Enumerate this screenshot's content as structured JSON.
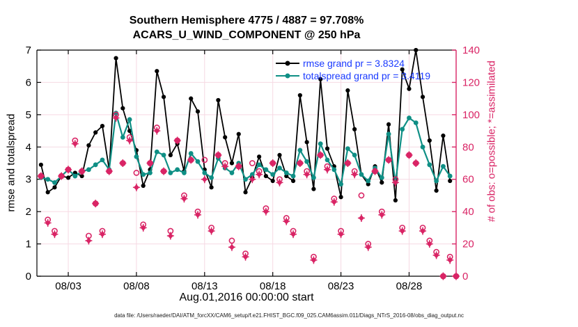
{
  "figure": {
    "title_line1": "Southern Hemisphere 4775 / 4887 = 97.708%",
    "title_line2": "ACARS_U_WIND_COMPONENT @ 250 hPa",
    "xlabel": "Aug.01,2016 00:00:00 start",
    "footer": "data file: /Users/raeder/DAI/ATM_forcXX/CAM6_setup/f.e21.FHIST_BGC.f09_025.CAM6assim.011/Diags_NTrS_2016-08/obs_diag_output.nc",
    "legend": [
      {
        "label": "rmse grand pr = 3.8324",
        "color": "#000000"
      },
      {
        "label": "totalspread grand pr = 3.4119",
        "color": "#0f8f85"
      }
    ],
    "colors": {
      "legend_text": "#1a3aff",
      "obs_magenta": "#d92465",
      "teal": "#0f8f85",
      "black": "#000000",
      "grid_pink": "#f6d9e3"
    }
  },
  "chart_data": {
    "type": "line",
    "title": "Southern Hemisphere 4775 / 4887 = 97.708%  /  ACARS_U_WIND_COMPONENT @ 250 hPa",
    "x_axis": {
      "label": "Aug.01,2016 00:00:00 start",
      "min": 0.7,
      "max": 31.45,
      "tick_days": [
        3,
        8,
        13,
        18,
        23,
        28
      ],
      "tick_labels": [
        "08/03",
        "08/08",
        "08/13",
        "08/18",
        "08/23",
        "08/28"
      ]
    },
    "left_axis": {
      "label": "rmse and totalspread",
      "min": 0,
      "max": 7,
      "ticks": [
        0,
        1,
        2,
        3,
        4,
        5,
        6,
        7
      ]
    },
    "right_axis": {
      "label": "# of obs: o=possible; *=assimilated",
      "min": 0,
      "max": 140,
      "ticks": [
        0,
        20,
        40,
        60,
        80,
        100,
        120,
        140
      ]
    },
    "grid": true,
    "legend_position": "top-right-inside",
    "x_days": [
      1,
      1.5,
      2,
      2.5,
      3,
      3.5,
      4,
      4.5,
      5,
      5.5,
      6,
      6.5,
      7,
      7.5,
      8,
      8.5,
      9,
      9.5,
      10,
      10.5,
      11,
      11.5,
      12,
      12.5,
      13,
      13.5,
      14,
      14.5,
      15,
      15.5,
      16,
      16.5,
      17,
      17.5,
      18,
      18.5,
      19,
      19.5,
      20,
      20.5,
      21,
      21.5,
      22,
      22.5,
      23,
      23.5,
      24,
      24.5,
      25,
      25.5,
      26,
      26.5,
      27,
      27.5,
      28,
      28.5,
      29,
      29.5,
      30,
      30.5,
      31,
      31.45
    ],
    "series": [
      {
        "name": "rmse",
        "axis": "left",
        "marker": "filled-circle",
        "color": "#000000",
        "grand_mean": 3.8324,
        "values": [
          3.45,
          2.6,
          2.75,
          3.1,
          3.05,
          3.2,
          3.1,
          4.05,
          4.45,
          4.65,
          3.3,
          6.75,
          5.2,
          4.5,
          3.9,
          2.8,
          3.3,
          6.35,
          5.55,
          3.75,
          4.1,
          3.25,
          5.5,
          5.1,
          3.3,
          2.75,
          5.45,
          4.3,
          3.5,
          4.4,
          2.6,
          3.05,
          3.7,
          3.1,
          2.95,
          3.75,
          3.1,
          2.95,
          5.6,
          4.15,
          2.7,
          6.1,
          3.95,
          3.4,
          2.45,
          5.75,
          4.55,
          3.15,
          2.85,
          3.4,
          2.9,
          4.7,
          2.35,
          6.4,
          5.8,
          7.0,
          5.55,
          4.2,
          2.65,
          4.35,
          2.95,
          null
        ]
      },
      {
        "name": "totalspread",
        "axis": "left",
        "marker": "filled-circle",
        "color": "#0f8f85",
        "grand_mean": 3.4119,
        "values": [
          3.05,
          3.0,
          2.9,
          3.1,
          3.3,
          3.1,
          3.25,
          3.3,
          3.45,
          3.6,
          3.3,
          5.05,
          4.3,
          4.85,
          3.7,
          3.15,
          3.2,
          3.85,
          3.75,
          3.2,
          3.3,
          3.2,
          3.8,
          3.55,
          3.2,
          3.05,
          3.65,
          3.35,
          3.2,
          3.5,
          3.0,
          3.15,
          3.45,
          3.3,
          3.15,
          3.35,
          3.2,
          3.1,
          3.9,
          3.55,
          3.05,
          4.1,
          3.6,
          3.3,
          2.85,
          3.95,
          3.75,
          3.15,
          2.95,
          3.35,
          3.05,
          4.4,
          2.9,
          4.55,
          4.9,
          4.75,
          4.0,
          3.45,
          2.95,
          3.4,
          3.1,
          null
        ]
      },
      {
        "name": "possible",
        "axis": "right",
        "marker": "open-circle",
        "color": "#d92465",
        "values": [
          62,
          35,
          28,
          62,
          66,
          84,
          65,
          25,
          45,
          28,
          65,
          100,
          70,
          86,
          64,
          32,
          70,
          92,
          65,
          28,
          84,
          50,
          72,
          40,
          72,
          30,
          75,
          70,
          22,
          68,
          14,
          70,
          65,
          42,
          70,
          60,
          36,
          28,
          70,
          65,
          12,
          75,
          68,
          48,
          28,
          70,
          65,
          50,
          20,
          65,
          40,
          72,
          60,
          30,
          75,
          70,
          30,
          22,
          15,
          0,
          12,
          0
        ]
      },
      {
        "name": "assimilated",
        "axis": "right",
        "marker": "star-diamond",
        "color": "#d92465",
        "values": [
          62,
          33,
          26,
          62,
          66,
          82,
          65,
          22,
          45,
          26,
          65,
          98,
          70,
          84,
          55,
          30,
          70,
          90,
          65,
          25,
          84,
          48,
          72,
          38,
          60,
          28,
          75,
          68,
          18,
          68,
          12,
          60,
          63,
          40,
          70,
          58,
          34,
          26,
          70,
          63,
          10,
          75,
          66,
          46,
          26,
          70,
          63,
          36,
          18,
          65,
          38,
          72,
          58,
          28,
          75,
          70,
          28,
          20,
          13,
          0,
          10,
          0
        ]
      }
    ]
  }
}
